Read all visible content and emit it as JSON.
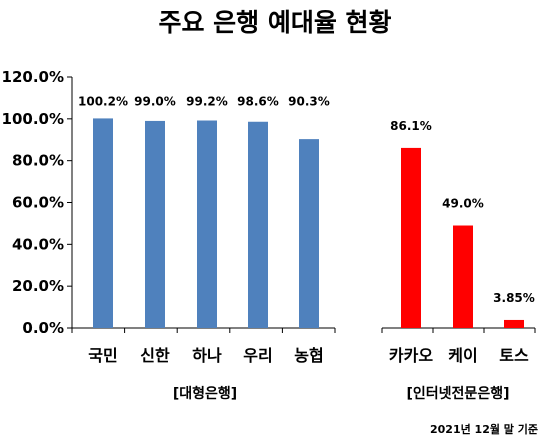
{
  "title": "주요 은행 예대율 현황",
  "note": "2021년 12월 말 기준",
  "chart_data": {
    "type": "bar",
    "ylim": [
      0,
      120
    ],
    "yticks": [
      0,
      20,
      40,
      60,
      80,
      100,
      120
    ],
    "ytick_labels": [
      "0.0%",
      "20.0%",
      "40.0%",
      "60.0%",
      "80.0%",
      "100.0%",
      "120.0%"
    ],
    "grid": false,
    "groups": [
      {
        "label": "[대형은행]",
        "color": "#4f81bd",
        "categories": [
          "국민",
          "신한",
          "하나",
          "우리",
          "농협"
        ],
        "values": [
          100.2,
          99.0,
          99.2,
          98.6,
          90.3
        ],
        "value_labels": [
          "100.2%",
          "99.0%",
          "99.2%",
          "98.6%",
          "90.3%"
        ]
      },
      {
        "label": "[인터넷전문은행]",
        "color": "#ff0000",
        "categories": [
          "카카오",
          "케이",
          "토스"
        ],
        "values": [
          86.1,
          49.0,
          3.85
        ],
        "value_labels": [
          "86.1%",
          "49.0%",
          "3.85%"
        ]
      }
    ]
  }
}
